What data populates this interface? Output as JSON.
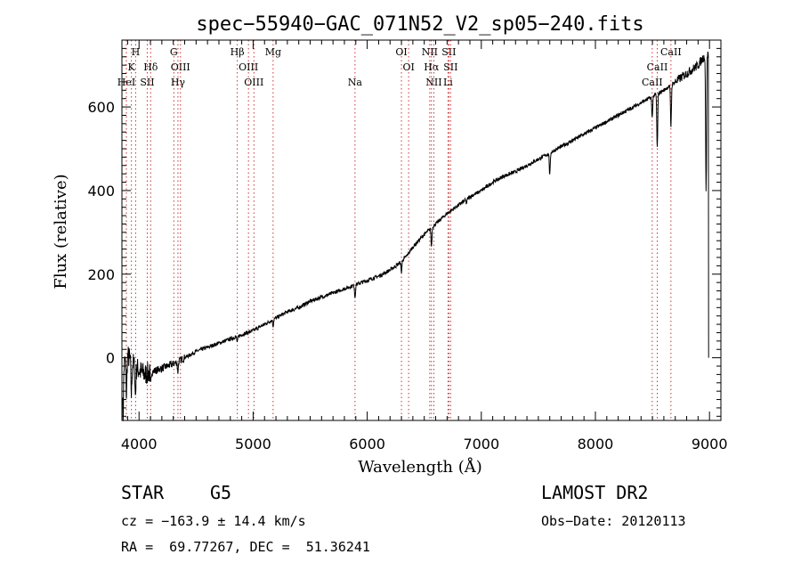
{
  "chart_data": {
    "type": "line",
    "title": "spec−55940−GAC_071N52_V2_sp05−240.fits",
    "xlabel": "Wavelength (Å)",
    "ylabel": "Flux (relative)",
    "xlim": [
      3850,
      9100
    ],
    "ylim": [
      -150,
      760
    ],
    "x_ticks": [
      4000,
      5000,
      6000,
      7000,
      8000,
      9000
    ],
    "y_ticks": [
      0,
      200,
      400,
      600
    ],
    "grid": false,
    "series": [
      {
        "color": "#000000",
        "x": [
          3860,
          3900,
          3950,
          4000,
          4050,
          4100,
          4200,
          4300,
          4400,
          4500,
          4600,
          4700,
          4800,
          4900,
          5000,
          5100,
          5200,
          5300,
          5400,
          5500,
          5600,
          5700,
          5800,
          5900,
          6000,
          6100,
          6200,
          6300,
          6350,
          6400,
          6500,
          6600,
          6700,
          6800,
          6900,
          7000,
          7100,
          7200,
          7300,
          7400,
          7500,
          7600,
          7700,
          7800,
          7900,
          8000,
          8100,
          8200,
          8300,
          8400,
          8500,
          8600,
          8700,
          8800,
          8900,
          8950,
          9000
        ],
        "y": [
          -20,
          5,
          -15,
          -30,
          -40,
          -35,
          -25,
          -15,
          0,
          15,
          25,
          35,
          45,
          55,
          65,
          80,
          95,
          110,
          120,
          135,
          145,
          155,
          165,
          175,
          185,
          195,
          210,
          230,
          245,
          265,
          295,
          320,
          345,
          365,
          385,
          400,
          420,
          435,
          445,
          460,
          475,
          490,
          505,
          520,
          535,
          550,
          565,
          580,
          595,
          610,
          625,
          640,
          660,
          680,
          700,
          720,
          730
        ]
      }
    ],
    "absorption_features": [
      {
        "x": 3860,
        "depth": 120
      },
      {
        "x": 3890,
        "depth": 90
      },
      {
        "x": 3933,
        "depth": 80
      },
      {
        "x": 3968,
        "depth": 70
      },
      {
        "x": 4101,
        "depth": 30
      },
      {
        "x": 4340,
        "depth": 25
      },
      {
        "x": 4861,
        "depth": 15
      },
      {
        "x": 5175,
        "depth": 15
      },
      {
        "x": 5893,
        "depth": 30
      },
      {
        "x": 6300,
        "depth": 25
      },
      {
        "x": 6563,
        "depth": 45
      },
      {
        "x": 6870,
        "depth": 10
      },
      {
        "x": 7600,
        "depth": 55
      },
      {
        "x": 8498,
        "depth": 50
      },
      {
        "x": 8542,
        "depth": 130
      },
      {
        "x": 8662,
        "depth": 100
      },
      {
        "x": 8970,
        "depth": 320
      }
    ],
    "line_markers": [
      {
        "x": 3889,
        "label": "HeI",
        "row": 3
      },
      {
        "x": 3933,
        "label": "K",
        "row": 2
      },
      {
        "x": 3970,
        "label": "H",
        "row": 1
      },
      {
        "x": 4102,
        "label": "Hδ",
        "row": 2
      },
      {
        "x": 4072,
        "label": "SII",
        "row": 3
      },
      {
        "x": 4305,
        "label": "G",
        "row": 1
      },
      {
        "x": 4363,
        "label": "OIII",
        "row": 2
      },
      {
        "x": 4341,
        "label": "Hγ",
        "row": 3
      },
      {
        "x": 4861,
        "label": "Hβ",
        "row": 1
      },
      {
        "x": 4959,
        "label": "OIII",
        "row": 2
      },
      {
        "x": 5007,
        "label": "OIII",
        "row": 3
      },
      {
        "x": 5175,
        "label": "Mg",
        "row": 1
      },
      {
        "x": 5893,
        "label": "Na",
        "row": 3
      },
      {
        "x": 6300,
        "label": "OI",
        "row": 1
      },
      {
        "x": 6363,
        "label": "OI",
        "row": 2
      },
      {
        "x": 6548,
        "label": "NII",
        "row": 1
      },
      {
        "x": 6563,
        "label": "Hα",
        "row": 2
      },
      {
        "x": 6584,
        "label": "NII",
        "row": 3
      },
      {
        "x": 6716,
        "label": "SII",
        "row": 1
      },
      {
        "x": 6731,
        "label": "SII",
        "row": 2
      },
      {
        "x": 6708,
        "label": "Li",
        "row": 3
      },
      {
        "x": 8662,
        "label": "CaII",
        "row": 1
      },
      {
        "x": 8542,
        "label": "CaII",
        "row": 2
      },
      {
        "x": 8498,
        "label": "CaII",
        "row": 3
      }
    ]
  },
  "info": {
    "object_class": "STAR",
    "subclass": "G5",
    "redshift": "cz = −163.9 ± 14.4 km/s",
    "coords": "RA =  69.77267, DEC =  51.36241",
    "survey": "LAMOST DR2",
    "obs_date": "Obs−Date: 20120113"
  },
  "colors": {
    "spectrum": "#000000",
    "marker": "#cc3333"
  }
}
